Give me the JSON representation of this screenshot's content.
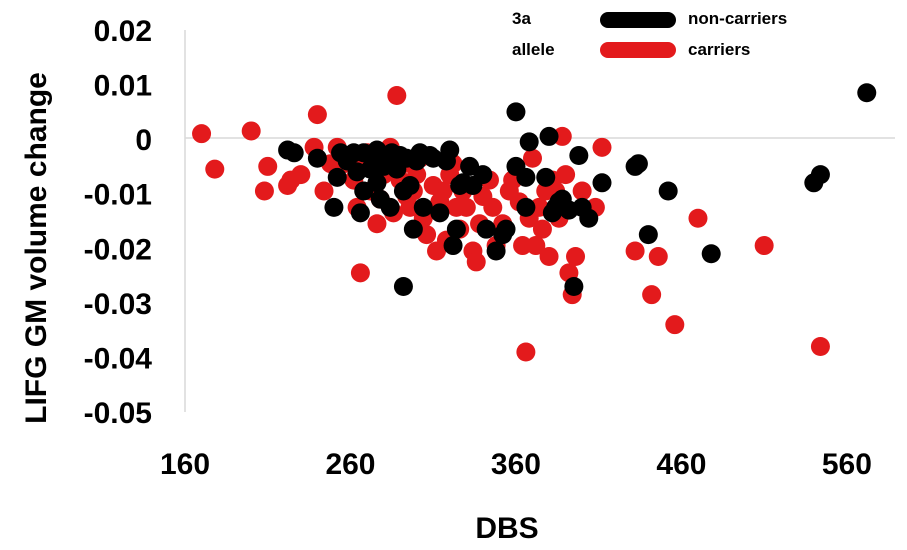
{
  "chart_data": {
    "type": "scatter",
    "xlabel": "DBS",
    "ylabel": "LIFG GM volume change",
    "xlim": [
      160,
      580
    ],
    "ylim": [
      -0.05,
      0.02
    ],
    "xticks": [
      "160",
      "260",
      "360",
      "460",
      "560"
    ],
    "yticks": [
      "0.02",
      "0.01",
      "0",
      "-0.01",
      "-0.02",
      "-0.03",
      "-0.04",
      "-0.05"
    ],
    "grid": false,
    "legend": {
      "position": "top-right",
      "title": [
        "3a",
        "allele"
      ],
      "entries": [
        {
          "label": "non-carriers",
          "color": "#000000"
        },
        {
          "label": "carriers",
          "color": "#e31a1c"
        }
      ]
    },
    "series": [
      {
        "name": "non-carriers",
        "color": "#000000",
        "points": [
          [
            222,
            -0.002
          ],
          [
            226,
            -0.0025
          ],
          [
            240,
            -0.0035
          ],
          [
            250,
            -0.0125
          ],
          [
            252,
            -0.007
          ],
          [
            254,
            -0.0025
          ],
          [
            258,
            -0.004
          ],
          [
            262,
            -0.0025
          ],
          [
            264,
            -0.006
          ],
          [
            266,
            -0.0135
          ],
          [
            268,
            -0.0095
          ],
          [
            268,
            -0.0025
          ],
          [
            272,
            -0.003
          ],
          [
            272,
            -0.0055
          ],
          [
            276,
            -0.008
          ],
          [
            276,
            -0.002
          ],
          [
            278,
            -0.011
          ],
          [
            280,
            -0.005
          ],
          [
            284,
            -0.0125
          ],
          [
            285,
            -0.0025
          ],
          [
            288,
            -0.0055
          ],
          [
            290,
            -0.003
          ],
          [
            292,
            -0.0095
          ],
          [
            292,
            -0.027
          ],
          [
            294,
            -0.0035
          ],
          [
            296,
            -0.0085
          ],
          [
            298,
            -0.0165
          ],
          [
            300,
            -0.004
          ],
          [
            302,
            -0.0025
          ],
          [
            304,
            -0.0125
          ],
          [
            308,
            -0.003
          ],
          [
            310,
            -0.0035
          ],
          [
            314,
            -0.0135
          ],
          [
            318,
            -0.004
          ],
          [
            320,
            -0.002
          ],
          [
            322,
            -0.0195
          ],
          [
            324,
            -0.0165
          ],
          [
            326,
            -0.0085
          ],
          [
            328,
            -0.008
          ],
          [
            332,
            -0.005
          ],
          [
            334,
            -0.0085
          ],
          [
            340,
            -0.0065
          ],
          [
            342,
            -0.0165
          ],
          [
            348,
            -0.0205
          ],
          [
            352,
            -0.0175
          ],
          [
            354,
            -0.0165
          ],
          [
            360,
            -0.005
          ],
          [
            360,
            0.005
          ],
          [
            366,
            -0.007
          ],
          [
            366,
            -0.0125
          ],
          [
            368,
            -0.0005
          ],
          [
            378,
            -0.007
          ],
          [
            380,
            0.0005
          ],
          [
            382,
            -0.0135
          ],
          [
            384,
            -0.0125
          ],
          [
            386,
            -0.0115
          ],
          [
            388,
            -0.011
          ],
          [
            392,
            -0.013
          ],
          [
            395,
            -0.027
          ],
          [
            398,
            -0.003
          ],
          [
            400,
            -0.0125
          ],
          [
            404,
            -0.0145
          ],
          [
            412,
            -0.008
          ],
          [
            432,
            -0.005
          ],
          [
            434,
            -0.0045
          ],
          [
            440,
            -0.0175
          ],
          [
            452,
            -0.0095
          ],
          [
            478,
            -0.021
          ],
          [
            540,
            -0.008
          ],
          [
            544,
            -0.0065
          ],
          [
            572,
            0.0085
          ]
        ]
      },
      {
        "name": "carriers",
        "color": "#e31a1c",
        "points": [
          [
            170,
            0.001
          ],
          [
            178,
            -0.0055
          ],
          [
            200,
            0.0015
          ],
          [
            208,
            -0.0095
          ],
          [
            210,
            -0.005
          ],
          [
            222,
            -0.0085
          ],
          [
            224,
            -0.0075
          ],
          [
            230,
            -0.0065
          ],
          [
            238,
            -0.0015
          ],
          [
            240,
            0.0045
          ],
          [
            244,
            -0.0095
          ],
          [
            248,
            -0.0045
          ],
          [
            252,
            -0.0015
          ],
          [
            256,
            -0.0045
          ],
          [
            262,
            -0.0075
          ],
          [
            264,
            -0.0125
          ],
          [
            266,
            -0.0245
          ],
          [
            268,
            -0.0035
          ],
          [
            270,
            -0.0025
          ],
          [
            272,
            -0.0095
          ],
          [
            276,
            -0.0155
          ],
          [
            278,
            -0.011
          ],
          [
            280,
            -0.0065
          ],
          [
            282,
            -0.0035
          ],
          [
            284,
            -0.0015
          ],
          [
            286,
            -0.0135
          ],
          [
            288,
            0.008
          ],
          [
            290,
            -0.0075
          ],
          [
            292,
            -0.0045
          ],
          [
            294,
            -0.0105
          ],
          [
            296,
            -0.0125
          ],
          [
            298,
            -0.0095
          ],
          [
            300,
            -0.0065
          ],
          [
            302,
            -0.0035
          ],
          [
            304,
            -0.0145
          ],
          [
            306,
            -0.0175
          ],
          [
            310,
            -0.0085
          ],
          [
            312,
            -0.0205
          ],
          [
            314,
            -0.0115
          ],
          [
            316,
            -0.0095
          ],
          [
            318,
            -0.0185
          ],
          [
            320,
            -0.0065
          ],
          [
            322,
            -0.0045
          ],
          [
            324,
            -0.0125
          ],
          [
            326,
            -0.0165
          ],
          [
            328,
            -0.0095
          ],
          [
            330,
            -0.0125
          ],
          [
            334,
            -0.0205
          ],
          [
            336,
            -0.0225
          ],
          [
            338,
            -0.0155
          ],
          [
            340,
            -0.0105
          ],
          [
            344,
            -0.0075
          ],
          [
            346,
            -0.0125
          ],
          [
            348,
            -0.0195
          ],
          [
            352,
            -0.0155
          ],
          [
            356,
            -0.0095
          ],
          [
            358,
            -0.0075
          ],
          [
            362,
            -0.0115
          ],
          [
            364,
            -0.0195
          ],
          [
            366,
            -0.039
          ],
          [
            368,
            -0.0145
          ],
          [
            370,
            -0.0035
          ],
          [
            372,
            -0.0195
          ],
          [
            374,
            -0.0125
          ],
          [
            376,
            -0.0165
          ],
          [
            378,
            -0.0095
          ],
          [
            380,
            -0.0215
          ],
          [
            382,
            -0.0075
          ],
          [
            384,
            -0.0095
          ],
          [
            386,
            -0.0145
          ],
          [
            388,
            0.0005
          ],
          [
            390,
            -0.0065
          ],
          [
            392,
            -0.0245
          ],
          [
            394,
            -0.0285
          ],
          [
            396,
            -0.0215
          ],
          [
            400,
            -0.0095
          ],
          [
            408,
            -0.0125
          ],
          [
            412,
            -0.0015
          ],
          [
            432,
            -0.0205
          ],
          [
            442,
            -0.0285
          ],
          [
            446,
            -0.0215
          ],
          [
            456,
            -0.034
          ],
          [
            470,
            -0.0145
          ],
          [
            510,
            -0.0195
          ],
          [
            544,
            -0.038
          ]
        ]
      }
    ]
  }
}
